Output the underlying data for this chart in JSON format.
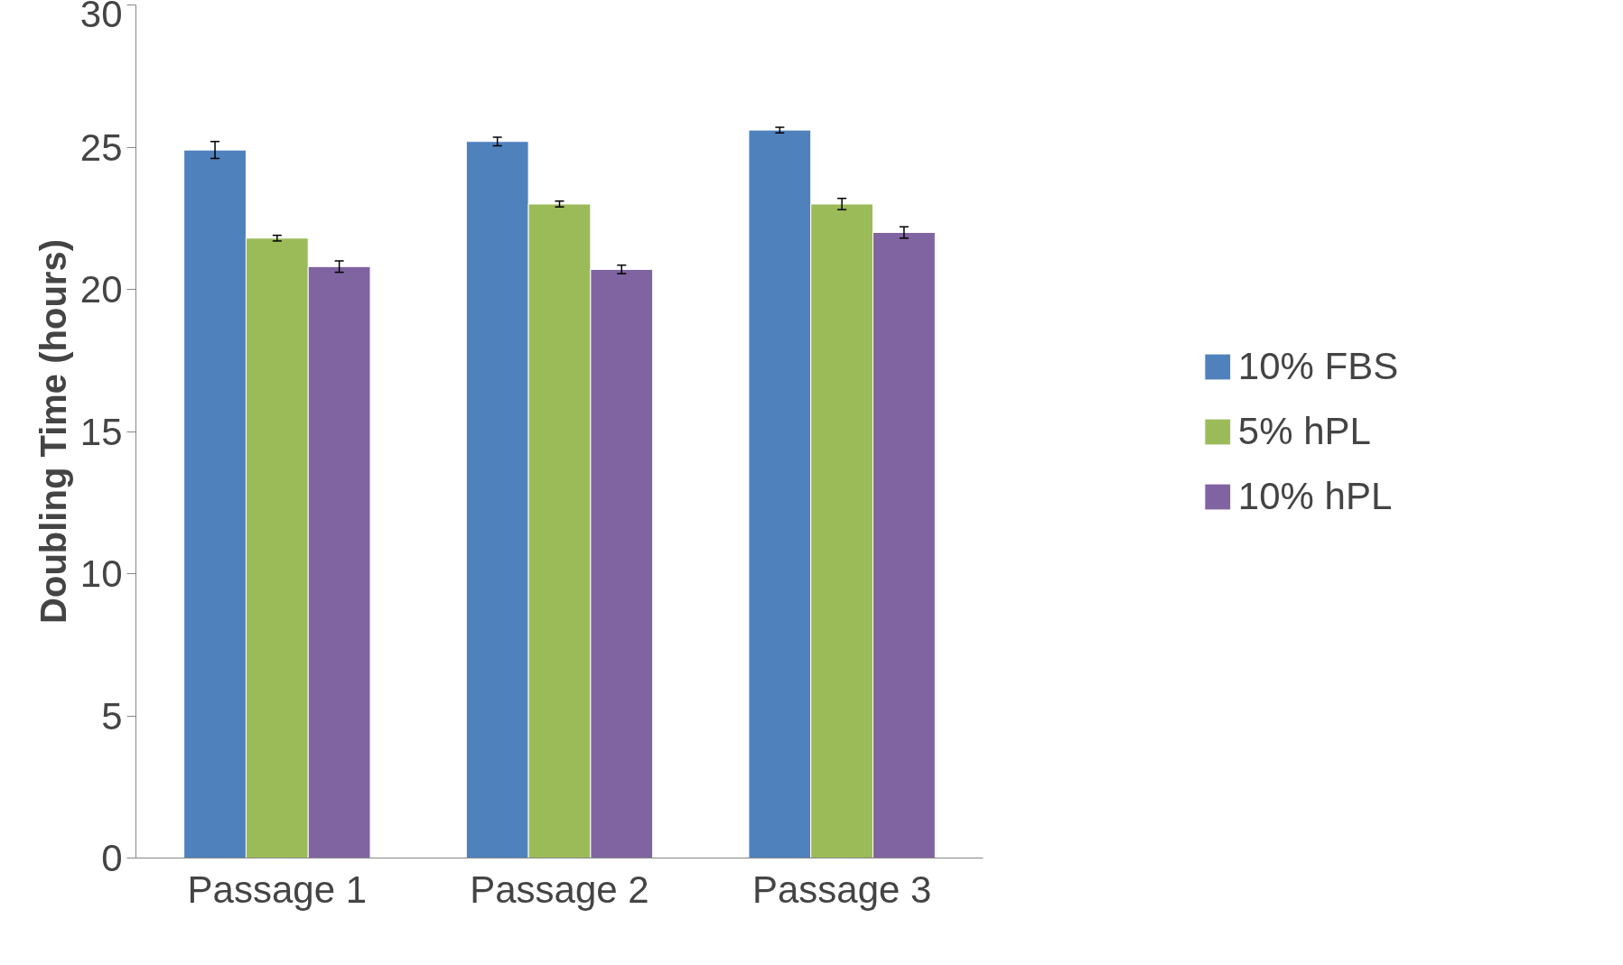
{
  "chart_data": {
    "type": "bar",
    "ylabel": "Doubling Time (hours)",
    "categories": [
      "Passage 1",
      "Passage 2",
      "Passage 3"
    ],
    "series": [
      {
        "name": "10% FBS",
        "color": "#4f81bd",
        "values": [
          24.9,
          25.2,
          25.6
        ],
        "errors": [
          0.3,
          0.15,
          0.1
        ]
      },
      {
        "name": "5% hPL",
        "color": "#9bbb59",
        "values": [
          21.8,
          23.0,
          23.0
        ],
        "errors": [
          0.1,
          0.1,
          0.2
        ]
      },
      {
        "name": "10% hPL",
        "color": "#8064a2",
        "values": [
          20.8,
          20.7,
          22.0
        ],
        "errors": [
          0.2,
          0.15,
          0.2
        ]
      }
    ],
    "ylim": [
      0,
      30
    ],
    "yticks": [
      0,
      5,
      10,
      15,
      20,
      25,
      30
    ],
    "grid": false,
    "legend": "right"
  }
}
